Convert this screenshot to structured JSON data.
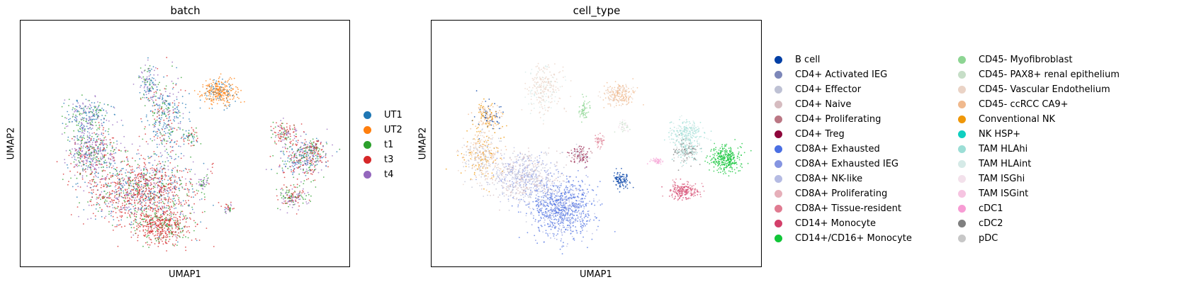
{
  "chart_data": [
    {
      "type": "scatter",
      "title": "batch",
      "xlabel": "UMAP1",
      "ylabel": "UMAP2",
      "xticks": [],
      "yticks": [],
      "grid": false,
      "legend_position": "right",
      "categories": [
        {
          "name": "UT1",
          "color": "#1f77b4"
        },
        {
          "name": "UT2",
          "color": "#ff7f0e"
        },
        {
          "name": "t1",
          "color": "#2ca02c"
        },
        {
          "name": "t3",
          "color": "#d62728"
        },
        {
          "name": "t4",
          "color": "#9467bd"
        }
      ]
    },
    {
      "type": "scatter",
      "title": "cell_type",
      "xlabel": "UMAP1",
      "ylabel": "UMAP2",
      "xticks": [],
      "yticks": [],
      "grid": false,
      "legend_position": "right",
      "categories": [
        {
          "name": "B cell",
          "color": "#023fa5"
        },
        {
          "name": "CD4+ Activated IEG",
          "color": "#7d87b9"
        },
        {
          "name": "CD4+ Effector",
          "color": "#bec1d4"
        },
        {
          "name": "CD4+ Naive",
          "color": "#d6bcc0"
        },
        {
          "name": "CD4+ Proliferating",
          "color": "#bb7784"
        },
        {
          "name": "CD4+ Treg",
          "color": "#8e063b"
        },
        {
          "name": "CD8A+ Exhausted",
          "color": "#4a6fe3"
        },
        {
          "name": "CD8A+ Exhausted IEG",
          "color": "#8595e1"
        },
        {
          "name": "CD8A+ NK-like",
          "color": "#b5bbe3"
        },
        {
          "name": "CD8A+ Proliferating",
          "color": "#e6afb9"
        },
        {
          "name": "CD8A+ Tissue-resident",
          "color": "#e07b91"
        },
        {
          "name": "CD14+ Monocyte",
          "color": "#d33f6a"
        },
        {
          "name": "CD14+/CD16+ Monocyte",
          "color": "#11c638"
        },
        {
          "name": "CD45- Myofibroblast",
          "color": "#8dd593"
        },
        {
          "name": "CD45- PAX8+ renal epithelium",
          "color": "#c6dec7"
        },
        {
          "name": "CD45- Vascular Endothelium",
          "color": "#ead3c6"
        },
        {
          "name": "CD45- ccRCC CA9+",
          "color": "#f0b98d"
        },
        {
          "name": "Conventional NK",
          "color": "#ef9708"
        },
        {
          "name": "NK HSP+",
          "color": "#0fcfc0"
        },
        {
          "name": "TAM HLAhi",
          "color": "#9cded6"
        },
        {
          "name": "TAM HLAint",
          "color": "#d5eae7"
        },
        {
          "name": "TAM ISGhi",
          "color": "#f3e1eb"
        },
        {
          "name": "TAM ISGint",
          "color": "#f6c4e1"
        },
        {
          "name": "cDC1",
          "color": "#f79cd4"
        },
        {
          "name": "cDC2",
          "color": "#7f7f7f"
        },
        {
          "name": "pDC",
          "color": "#c7c7c7"
        }
      ]
    }
  ]
}
